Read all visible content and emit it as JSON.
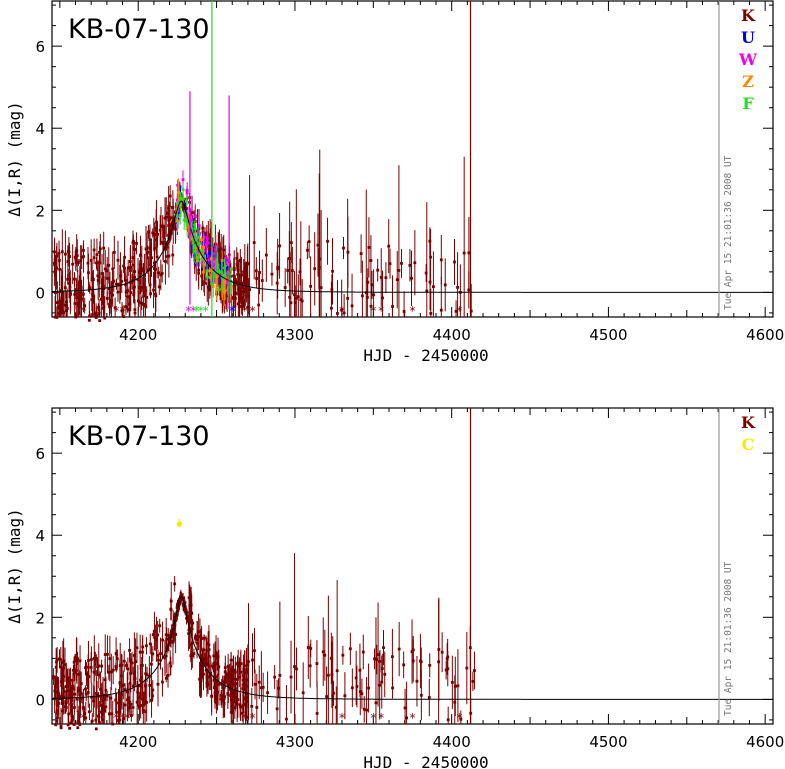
{
  "chart_data": [
    {
      "type": "scatter",
      "title": "KB-07-130",
      "xlabel": "HJD - 2450000",
      "ylabel": "Δ(I,R) (mag)",
      "xlim": [
        4145,
        4605
      ],
      "ylim": [
        -0.6,
        7.1
      ],
      "xticks": [
        4200,
        4300,
        4400,
        4500,
        4600
      ],
      "yticks": [
        0,
        2,
        4,
        6
      ],
      "timestamp": "Tue Apr 15 21:01:36 2008 UT",
      "model": {
        "t0": 4227.5,
        "tE": 29,
        "u0": 0.13
      },
      "series": [
        {
          "name": "K",
          "color": "#7a0000"
        },
        {
          "name": "U",
          "color": "#0000dd"
        },
        {
          "name": "W",
          "color": "#ee00ee"
        },
        {
          "name": "Z",
          "color": "#ff8800"
        },
        {
          "name": "F",
          "color": "#22dd22"
        }
      ],
      "highlight": [
        {
          "series": "K",
          "x": 4412,
          "y": 7.1,
          "err": 8
        },
        {
          "series": "F",
          "x": 4247,
          "y": 3.0,
          "err": 5
        },
        {
          "series": "W",
          "x": 4233,
          "y": 2.3,
          "err": 2.6
        },
        {
          "series": "W",
          "x": 4258,
          "y": 2.2,
          "err": 2.6
        }
      ],
      "bottom_marks": [
        {
          "series": "K",
          "x": [
            4165,
            4186,
            4190,
            4193,
            4268,
            4273,
            4330,
            4350,
            4355,
            4375,
            4405
          ]
        },
        {
          "series": "W",
          "x": [
            4232,
            4235
          ]
        },
        {
          "series": "F",
          "x": [
            4237,
            4240,
            4243
          ]
        },
        {
          "series": "U",
          "x": [
            4260
          ]
        }
      ]
    },
    {
      "type": "scatter",
      "title": "KB-07-130",
      "xlabel": "HJD - 2450000",
      "ylabel": "Δ(I,R) (mag)",
      "xlim": [
        4145,
        4605
      ],
      "ylim": [
        -0.6,
        7.1
      ],
      "xticks": [
        4200,
        4300,
        4400,
        4500,
        4600
      ],
      "yticks": [
        0,
        2,
        4,
        6
      ],
      "timestamp": "Tue Apr 15 21:01:36 2008 UT",
      "model": {
        "t0": 4227.5,
        "tE": 29,
        "u0": 0.1
      },
      "series": [
        {
          "name": "K",
          "color": "#7a0000"
        },
        {
          "name": "C",
          "color": "#eeee00"
        }
      ],
      "highlight": [
        {
          "series": "K",
          "x": 4412,
          "y": 7.1,
          "err": 8
        },
        {
          "series": "C",
          "x": 4226,
          "y": 4.3,
          "err": 0.1
        }
      ],
      "bottom_marks": [
        {
          "series": "K",
          "x": [
            4165,
            4186,
            4190,
            4193,
            4268,
            4273,
            4330,
            4350,
            4355,
            4375,
            4405
          ]
        }
      ]
    }
  ]
}
